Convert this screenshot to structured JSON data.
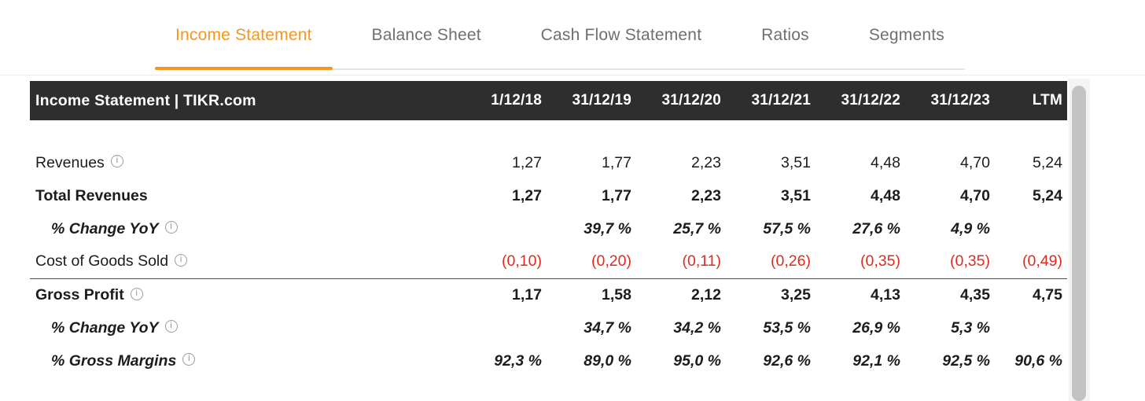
{
  "colors": {
    "accent_orange": "#F59623",
    "negative_value": "#E02A1E",
    "table_header_bg": "#2E2E2E"
  },
  "icons": {
    "info_glyph": "i"
  },
  "tabs": {
    "items": [
      {
        "label": "Income Statement",
        "active": true
      },
      {
        "label": "Balance Sheet",
        "active": false
      },
      {
        "label": "Cash Flow Statement",
        "active": false
      },
      {
        "label": "Ratios",
        "active": false
      },
      {
        "label": "Segments",
        "active": false
      }
    ]
  },
  "statement_table": {
    "title": "Income Statement | TIKR.com",
    "columns": [
      "1/12/18",
      "31/12/19",
      "31/12/20",
      "31/12/21",
      "31/12/22",
      "31/12/23",
      "LTM"
    ],
    "rows": [
      {
        "label": "Revenues",
        "has_info": true,
        "style": "regular",
        "values": [
          "1,27",
          "1,77",
          "2,23",
          "3,51",
          "4,48",
          "4,70",
          "5,24"
        ]
      },
      {
        "label": "Total Revenues",
        "has_info": false,
        "style": "bold",
        "values": [
          "1,27",
          "1,77",
          "2,23",
          "3,51",
          "4,48",
          "4,70",
          "5,24"
        ]
      },
      {
        "label": "% Change YoY",
        "has_info": true,
        "style": "percent-italic",
        "values": [
          "",
          "39,7 %",
          "25,7 %",
          "57,5 %",
          "27,6 %",
          "4,9 %",
          ""
        ]
      },
      {
        "label": "Cost of Goods Sold",
        "has_info": true,
        "style": "negative-red",
        "values": [
          "(0,10)",
          "(0,20)",
          "(0,11)",
          "(0,26)",
          "(0,35)",
          "(0,35)",
          "(0,49)"
        ]
      },
      {
        "label": "Gross Profit",
        "has_info": true,
        "style": "bold-divider-top",
        "values": [
          "1,17",
          "1,58",
          "2,12",
          "3,25",
          "4,13",
          "4,35",
          "4,75"
        ]
      },
      {
        "label": "% Change YoY",
        "has_info": true,
        "style": "percent-italic",
        "values": [
          "",
          "34,7 %",
          "34,2 %",
          "53,5 %",
          "26,9 %",
          "5,3 %",
          ""
        ]
      },
      {
        "label": "% Gross Margins",
        "has_info": true,
        "style": "percent-italic",
        "values": [
          "92,3 %",
          "89,0 %",
          "95,0 %",
          "92,6 %",
          "92,1 %",
          "92,5 %",
          "90,6 %"
        ]
      }
    ]
  }
}
